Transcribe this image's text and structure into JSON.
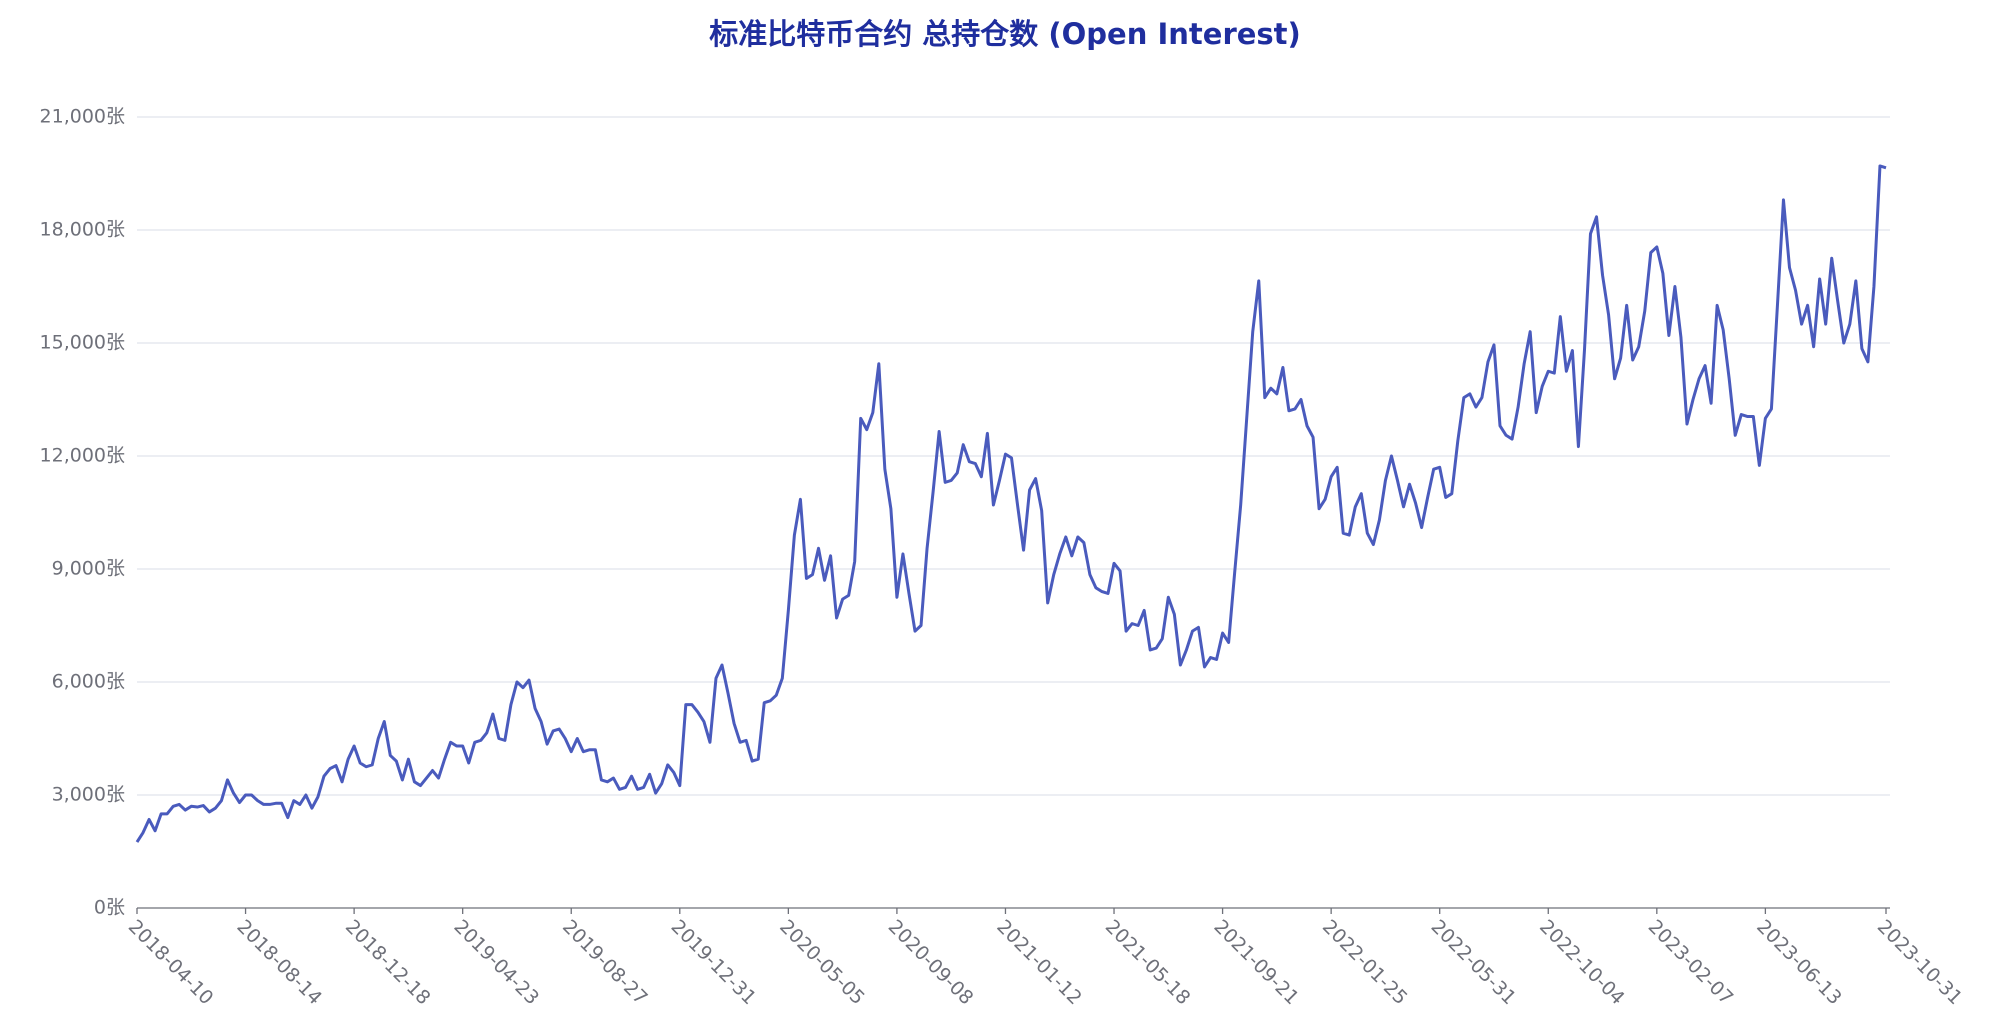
{
  "chart_data": {
    "type": "line",
    "title": "标准比特币合约 总持仓数 (Open Interest)",
    "categories": [
      "2018-04-10",
      null,
      null,
      null,
      null,
      null,
      null,
      null,
      null,
      null,
      null,
      null,
      null,
      null,
      null,
      null,
      null,
      null,
      "2018-08-14",
      null,
      null,
      null,
      null,
      null,
      null,
      null,
      null,
      null,
      null,
      null,
      null,
      null,
      null,
      null,
      null,
      null,
      "2018-12-18",
      null,
      null,
      null,
      null,
      null,
      null,
      null,
      null,
      null,
      null,
      null,
      null,
      null,
      null,
      null,
      null,
      null,
      "2019-04-23",
      null,
      null,
      null,
      null,
      null,
      null,
      null,
      null,
      null,
      null,
      null,
      null,
      null,
      null,
      null,
      null,
      null,
      "2019-08-27",
      null,
      null,
      null,
      null,
      null,
      null,
      null,
      null,
      null,
      null,
      null,
      null,
      null,
      null,
      null,
      null,
      null,
      "2019-12-31",
      null,
      null,
      null,
      null,
      null,
      null,
      null,
      null,
      null,
      null,
      null,
      null,
      null,
      null,
      null,
      null,
      null,
      "2020-05-05",
      null,
      null,
      null,
      null,
      null,
      null,
      null,
      null,
      null,
      null,
      null,
      null,
      null,
      null,
      null,
      null,
      null,
      "2020-09-08",
      null,
      null,
      null,
      null,
      null,
      null,
      null,
      null,
      null,
      null,
      null,
      null,
      null,
      null,
      null,
      null,
      null,
      "2021-01-12",
      null,
      null,
      null,
      null,
      null,
      null,
      null,
      null,
      null,
      null,
      null,
      null,
      null,
      null,
      null,
      null,
      null,
      "2021-05-18",
      null,
      null,
      null,
      null,
      null,
      null,
      null,
      null,
      null,
      null,
      null,
      null,
      null,
      null,
      null,
      null,
      null,
      "2021-09-21",
      null,
      null,
      null,
      null,
      null,
      null,
      null,
      null,
      null,
      null,
      null,
      null,
      null,
      null,
      null,
      null,
      null,
      "2022-01-25",
      null,
      null,
      null,
      null,
      null,
      null,
      null,
      null,
      null,
      null,
      null,
      null,
      null,
      null,
      null,
      null,
      null,
      "2022-05-31",
      null,
      null,
      null,
      null,
      null,
      null,
      null,
      null,
      null,
      null,
      null,
      null,
      null,
      null,
      null,
      null,
      null,
      "2022-10-04",
      null,
      null,
      null,
      null,
      null,
      null,
      null,
      null,
      null,
      null,
      null,
      null,
      null,
      null,
      null,
      null,
      null,
      "2023-02-07",
      null,
      null,
      null,
      null,
      null,
      null,
      null,
      null,
      null,
      null,
      null,
      null,
      null,
      null,
      null,
      null,
      null,
      "2023-06-13",
      null,
      null,
      null,
      null,
      null,
      null,
      null,
      null,
      null,
      null,
      null,
      null,
      null,
      null,
      null,
      null,
      null,
      null,
      null,
      "2023-10-31"
    ],
    "values": [
      1750,
      2000,
      2350,
      2050,
      2500,
      2500,
      2700,
      2750,
      2600,
      2700,
      2680,
      2720,
      2550,
      2650,
      2850,
      3400,
      3050,
      2800,
      3000,
      3000,
      2850,
      2750,
      2750,
      2780,
      2780,
      2400,
      2850,
      2750,
      3000,
      2650,
      2950,
      3500,
      3700,
      3780,
      3350,
      3950,
      4300,
      3850,
      3750,
      3800,
      4500,
      4950,
      4050,
      3900,
      3400,
      3950,
      3350,
      3250,
      3450,
      3650,
      3450,
      3950,
      4400,
      4300,
      4300,
      3850,
      4400,
      4450,
      4650,
      5150,
      4500,
      4450,
      5400,
      6000,
      5850,
      6050,
      5300,
      4950,
      4350,
      4700,
      4750,
      4500,
      4150,
      4500,
      4150,
      4200,
      4200,
      3400,
      3350,
      3450,
      3150,
      3200,
      3500,
      3150,
      3200,
      3550,
      3050,
      3300,
      3800,
      3600,
      3250,
      5400,
      5400,
      5200,
      4950,
      4400,
      6100,
      6450,
      5700,
      4900,
      4400,
      4450,
      3900,
      3950,
      5450,
      5500,
      5650,
      6100,
      7900,
      9900,
      10850,
      8750,
      8850,
      9550,
      8700,
      9350,
      7700,
      8200,
      8300,
      9200,
      13000,
      12700,
      13150,
      14450,
      11650,
      10600,
      8250,
      9400,
      8350,
      7350,
      7500,
      9550,
      11050,
      12650,
      11300,
      11350,
      11550,
      12300,
      11850,
      11800,
      11450,
      12600,
      10700,
      11350,
      12050,
      11950,
      10700,
      9500,
      11100,
      11400,
      10550,
      8100,
      8850,
      9400,
      9850,
      9350,
      9850,
      9700,
      8850,
      8500,
      8400,
      8350,
      9150,
      8950,
      7350,
      7550,
      7500,
      7900,
      6850,
      6900,
      7150,
      8250,
      7800,
      6450,
      6850,
      7350,
      7450,
      6400,
      6650,
      6600,
      7300,
      7050,
      8900,
      10700,
      13000,
      15300,
      16650,
      13550,
      13800,
      13650,
      14350,
      13200,
      13250,
      13500,
      12800,
      12500,
      10600,
      10850,
      11450,
      11700,
      9950,
      9900,
      10650,
      11000,
      9950,
      9650,
      10300,
      11350,
      12000,
      11350,
      10650,
      11250,
      10750,
      10100,
      10900,
      11650,
      11700,
      10900,
      11000,
      12400,
      13550,
      13650,
      13300,
      13550,
      14500,
      14950,
      12800,
      12550,
      12450,
      13300,
      14450,
      15300,
      13150,
      13850,
      14250,
      14200,
      15700,
      14250,
      14800,
      12250,
      14800,
      17900,
      18350,
      16800,
      15750,
      14050,
      14600,
      16000,
      14550,
      14900,
      15850,
      17400,
      17550,
      16850,
      15200,
      16500,
      15150,
      12850,
      13500,
      14050,
      14400,
      13400,
      16000,
      15350,
      14050,
      12550,
      13100,
      13050,
      13050,
      11750,
      13000,
      13250,
      16000,
      18800,
      17000,
      16400,
      15500,
      16000,
      14900,
      16700,
      15500,
      17250,
      16100,
      15000,
      15500,
      16650,
      14850,
      14500,
      16500,
      19700,
      19650
    ],
    "color": "#4a5bbd",
    "ylim": [
      0,
      21000
    ],
    "yticks": [
      {
        "value": 0,
        "label": "0张"
      },
      {
        "value": 3000,
        "label": "3,000张"
      },
      {
        "value": 6000,
        "label": "6,000张"
      },
      {
        "value": 9000,
        "label": "9,000张"
      },
      {
        "value": 12000,
        "label": "12,000张"
      },
      {
        "value": 15000,
        "label": "15,000张"
      },
      {
        "value": 18000,
        "label": "18,000张"
      },
      {
        "value": 21000,
        "label": "21,000张"
      }
    ],
    "grid": true
  }
}
